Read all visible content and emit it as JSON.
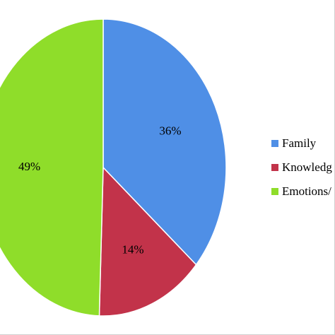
{
  "chart_data": {
    "type": "pie",
    "title": "",
    "categories": [
      "Family",
      "Knowledg",
      "Emotions/"
    ],
    "values": [
      36,
      14,
      49
    ],
    "labels": [
      "36%",
      "14%",
      "49%"
    ],
    "colors": [
      "#4f8fe6",
      "#c2334a",
      "#8fdd2a"
    ],
    "legend": "right",
    "start_angle_deg": 0,
    "direction": "clockwise"
  }
}
